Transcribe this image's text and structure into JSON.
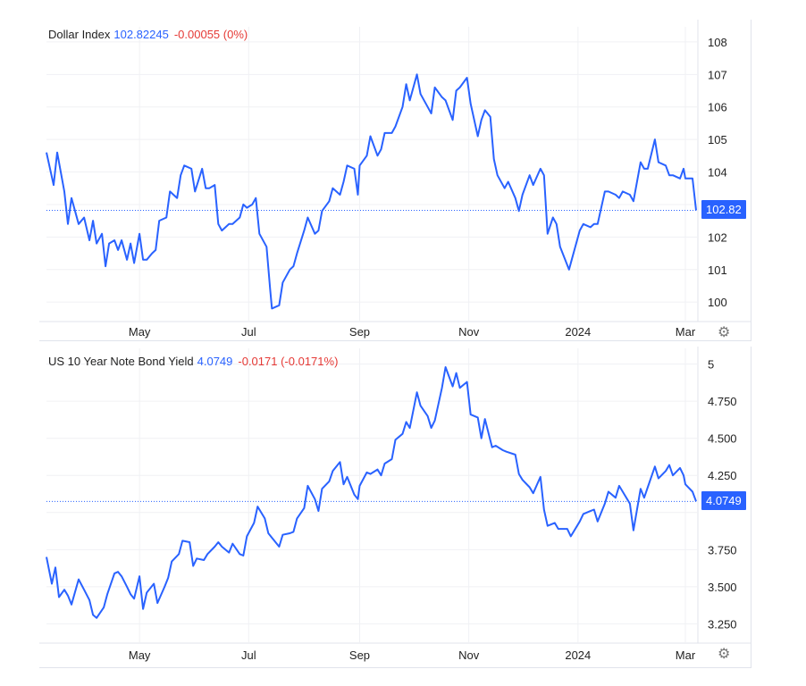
{
  "chart_data": [
    {
      "type": "line",
      "legend": {
        "name": "Dollar Index",
        "value": "102.82245",
        "change": "-0.00055 (0%)"
      },
      "last_label": "102.82",
      "last_value": 102.82,
      "ylim": [
        99.4,
        108.3
      ],
      "yticks": [
        100,
        101,
        102,
        103,
        104,
        105,
        106,
        107,
        108
      ],
      "ytick_labels": [
        "100",
        "101",
        "102",
        "",
        "104",
        "105",
        "106",
        "107",
        "108"
      ],
      "xticks": [
        "May",
        "Jul",
        "Sep",
        "Nov",
        "2024",
        "Mar"
      ],
      "xtick_positions": [
        "2023-05-01",
        "2023-07-01",
        "2023-09-01",
        "2023-11-01",
        "2024-01-01",
        "2024-03-01"
      ],
      "xlim": [
        "2023-03-10",
        "2024-03-08"
      ],
      "grid": true,
      "color": "#2962ff",
      "points": [
        [
          "2023-03-10",
          104.6
        ],
        [
          "2023-03-14",
          103.6
        ],
        [
          "2023-03-16",
          104.6
        ],
        [
          "2023-03-20",
          103.4
        ],
        [
          "2023-03-22",
          102.4
        ],
        [
          "2023-03-24",
          103.2
        ],
        [
          "2023-03-28",
          102.4
        ],
        [
          "2023-03-31",
          102.6
        ],
        [
          "2023-04-03",
          101.9
        ],
        [
          "2023-04-05",
          102.5
        ],
        [
          "2023-04-07",
          101.8
        ],
        [
          "2023-04-10",
          102.1
        ],
        [
          "2023-04-12",
          101.1
        ],
        [
          "2023-04-14",
          101.8
        ],
        [
          "2023-04-17",
          101.9
        ],
        [
          "2023-04-19",
          101.6
        ],
        [
          "2023-04-21",
          101.9
        ],
        [
          "2023-04-24",
          101.3
        ],
        [
          "2023-04-26",
          101.8
        ],
        [
          "2023-04-28",
          101.2
        ],
        [
          "2023-05-01",
          102.1
        ],
        [
          "2023-05-03",
          101.3
        ],
        [
          "2023-05-05",
          101.3
        ],
        [
          "2023-05-08",
          101.5
        ],
        [
          "2023-05-10",
          101.6
        ],
        [
          "2023-05-12",
          102.5
        ],
        [
          "2023-05-16",
          102.6
        ],
        [
          "2023-05-18",
          103.4
        ],
        [
          "2023-05-22",
          103.2
        ],
        [
          "2023-05-24",
          103.9
        ],
        [
          "2023-05-26",
          104.2
        ],
        [
          "2023-05-30",
          104.1
        ],
        [
          "2023-06-01",
          103.4
        ],
        [
          "2023-06-05",
          104.1
        ],
        [
          "2023-06-07",
          103.5
        ],
        [
          "2023-06-09",
          103.5
        ],
        [
          "2023-06-12",
          103.6
        ],
        [
          "2023-06-14",
          102.4
        ],
        [
          "2023-06-16",
          102.2
        ],
        [
          "2023-06-20",
          102.4
        ],
        [
          "2023-06-22",
          102.4
        ],
        [
          "2023-06-26",
          102.6
        ],
        [
          "2023-06-28",
          103.0
        ],
        [
          "2023-06-30",
          102.9
        ],
        [
          "2023-07-03",
          103.0
        ],
        [
          "2023-07-05",
          103.2
        ],
        [
          "2023-07-07",
          102.1
        ],
        [
          "2023-07-11",
          101.7
        ],
        [
          "2023-07-13",
          100.4
        ],
        [
          "2023-07-14",
          99.8
        ],
        [
          "2023-07-18",
          99.9
        ],
        [
          "2023-07-20",
          100.6
        ],
        [
          "2023-07-24",
          101.0
        ],
        [
          "2023-07-26",
          101.1
        ],
        [
          "2023-07-28",
          101.5
        ],
        [
          "2023-08-01",
          102.2
        ],
        [
          "2023-08-03",
          102.6
        ],
        [
          "2023-08-07",
          102.1
        ],
        [
          "2023-08-09",
          102.2
        ],
        [
          "2023-08-11",
          102.8
        ],
        [
          "2023-08-15",
          103.1
        ],
        [
          "2023-08-17",
          103.5
        ],
        [
          "2023-08-21",
          103.3
        ],
        [
          "2023-08-23",
          103.7
        ],
        [
          "2023-08-25",
          104.2
        ],
        [
          "2023-08-29",
          104.1
        ],
        [
          "2023-08-31",
          103.3
        ],
        [
          "2023-09-01",
          104.2
        ],
        [
          "2023-09-05",
          104.5
        ],
        [
          "2023-09-07",
          105.1
        ],
        [
          "2023-09-11",
          104.5
        ],
        [
          "2023-09-13",
          104.7
        ],
        [
          "2023-09-15",
          105.2
        ],
        [
          "2023-09-19",
          105.2
        ],
        [
          "2023-09-21",
          105.4
        ],
        [
          "2023-09-25",
          106.0
        ],
        [
          "2023-09-27",
          106.7
        ],
        [
          "2023-09-29",
          106.2
        ],
        [
          "2023-10-03",
          107.0
        ],
        [
          "2023-10-05",
          106.4
        ],
        [
          "2023-10-09",
          106.0
        ],
        [
          "2023-10-11",
          105.8
        ],
        [
          "2023-10-13",
          106.6
        ],
        [
          "2023-10-17",
          106.3
        ],
        [
          "2023-10-19",
          106.2
        ],
        [
          "2023-10-23",
          105.6
        ],
        [
          "2023-10-25",
          106.5
        ],
        [
          "2023-10-27",
          106.6
        ],
        [
          "2023-10-31",
          106.9
        ],
        [
          "2023-11-02",
          106.1
        ],
        [
          "2023-11-06",
          105.1
        ],
        [
          "2023-11-08",
          105.6
        ],
        [
          "2023-11-10",
          105.9
        ],
        [
          "2023-11-13",
          105.7
        ],
        [
          "2023-11-15",
          104.4
        ],
        [
          "2023-11-17",
          103.9
        ],
        [
          "2023-11-21",
          103.5
        ],
        [
          "2023-11-23",
          103.7
        ],
        [
          "2023-11-27",
          103.2
        ],
        [
          "2023-11-29",
          102.8
        ],
        [
          "2023-12-01",
          103.3
        ],
        [
          "2023-12-05",
          103.9
        ],
        [
          "2023-12-07",
          103.6
        ],
        [
          "2023-12-11",
          104.1
        ],
        [
          "2023-12-13",
          103.9
        ],
        [
          "2023-12-15",
          102.1
        ],
        [
          "2023-12-18",
          102.6
        ],
        [
          "2023-12-20",
          102.4
        ],
        [
          "2023-12-22",
          101.7
        ],
        [
          "2023-12-27",
          101.0
        ],
        [
          "2023-12-29",
          101.4
        ],
        [
          "2024-01-02",
          102.2
        ],
        [
          "2024-01-04",
          102.4
        ],
        [
          "2024-01-08",
          102.3
        ],
        [
          "2024-01-10",
          102.4
        ],
        [
          "2024-01-12",
          102.4
        ],
        [
          "2024-01-16",
          103.4
        ],
        [
          "2024-01-18",
          103.4
        ],
        [
          "2024-01-22",
          103.3
        ],
        [
          "2024-01-24",
          103.2
        ],
        [
          "2024-01-26",
          103.4
        ],
        [
          "2024-01-30",
          103.3
        ],
        [
          "2024-02-01",
          103.1
        ],
        [
          "2024-02-05",
          104.3
        ],
        [
          "2024-02-07",
          104.1
        ],
        [
          "2024-02-09",
          104.1
        ],
        [
          "2024-02-13",
          105.0
        ],
        [
          "2024-02-15",
          104.3
        ],
        [
          "2024-02-19",
          104.2
        ],
        [
          "2024-02-21",
          103.9
        ],
        [
          "2024-02-23",
          103.9
        ],
        [
          "2024-02-27",
          103.8
        ],
        [
          "2024-02-29",
          104.1
        ],
        [
          "2024-03-01",
          103.8
        ],
        [
          "2024-03-05",
          103.8
        ],
        [
          "2024-03-07",
          102.82
        ]
      ]
    },
    {
      "type": "line",
      "legend": {
        "name": "US 10 Year Note Bond Yield",
        "value": "4.0749",
        "change": "-0.0171 (-0.0171%)"
      },
      "last_label": "4.0749",
      "last_value": 4.0749,
      "ylim": [
        3.12,
        5.07
      ],
      "yticks": [
        3.25,
        3.5,
        3.75,
        4.0,
        4.25,
        4.5,
        4.75,
        5.0
      ],
      "ytick_labels": [
        "3.250",
        "3.500",
        "3.750",
        "",
        "4.250",
        "4.500",
        "4.750",
        "5"
      ],
      "xticks": [
        "May",
        "Jul",
        "Sep",
        "Nov",
        "2024",
        "Mar"
      ],
      "xtick_positions": [
        "2023-05-01",
        "2023-07-01",
        "2023-09-01",
        "2023-11-01",
        "2024-01-01",
        "2024-03-01"
      ],
      "xlim": [
        "2023-03-10",
        "2024-03-08"
      ],
      "grid": true,
      "color": "#2962ff",
      "points": [
        [
          "2023-03-10",
          3.7
        ],
        [
          "2023-03-13",
          3.52
        ],
        [
          "2023-03-15",
          3.63
        ],
        [
          "2023-03-17",
          3.43
        ],
        [
          "2023-03-20",
          3.48
        ],
        [
          "2023-03-22",
          3.44
        ],
        [
          "2023-03-24",
          3.38
        ],
        [
          "2023-03-28",
          3.55
        ],
        [
          "2023-03-31",
          3.48
        ],
        [
          "2023-04-03",
          3.41
        ],
        [
          "2023-04-05",
          3.31
        ],
        [
          "2023-04-07",
          3.29
        ],
        [
          "2023-04-11",
          3.36
        ],
        [
          "2023-04-13",
          3.45
        ],
        [
          "2023-04-17",
          3.59
        ],
        [
          "2023-04-19",
          3.6
        ],
        [
          "2023-04-21",
          3.57
        ],
        [
          "2023-04-24",
          3.5
        ],
        [
          "2023-04-26",
          3.45
        ],
        [
          "2023-04-28",
          3.42
        ],
        [
          "2023-05-01",
          3.57
        ],
        [
          "2023-05-03",
          3.35
        ],
        [
          "2023-05-05",
          3.46
        ],
        [
          "2023-05-09",
          3.52
        ],
        [
          "2023-05-11",
          3.39
        ],
        [
          "2023-05-15",
          3.5
        ],
        [
          "2023-05-17",
          3.56
        ],
        [
          "2023-05-19",
          3.67
        ],
        [
          "2023-05-23",
          3.72
        ],
        [
          "2023-05-25",
          3.81
        ],
        [
          "2023-05-29",
          3.8
        ],
        [
          "2023-05-31",
          3.64
        ],
        [
          "2023-06-02",
          3.69
        ],
        [
          "2023-06-06",
          3.68
        ],
        [
          "2023-06-08",
          3.72
        ],
        [
          "2023-06-12",
          3.77
        ],
        [
          "2023-06-14",
          3.8
        ],
        [
          "2023-06-16",
          3.77
        ],
        [
          "2023-06-20",
          3.73
        ],
        [
          "2023-06-22",
          3.79
        ],
        [
          "2023-06-26",
          3.72
        ],
        [
          "2023-06-28",
          3.71
        ],
        [
          "2023-06-30",
          3.84
        ],
        [
          "2023-07-04",
          3.93
        ],
        [
          "2023-07-06",
          4.04
        ],
        [
          "2023-07-10",
          3.96
        ],
        [
          "2023-07-12",
          3.86
        ],
        [
          "2023-07-14",
          3.83
        ],
        [
          "2023-07-18",
          3.77
        ],
        [
          "2023-07-20",
          3.85
        ],
        [
          "2023-07-24",
          3.86
        ],
        [
          "2023-07-26",
          3.87
        ],
        [
          "2023-07-28",
          3.96
        ],
        [
          "2023-08-01",
          4.03
        ],
        [
          "2023-08-03",
          4.18
        ],
        [
          "2023-08-07",
          4.09
        ],
        [
          "2023-08-09",
          4.01
        ],
        [
          "2023-08-11",
          4.16
        ],
        [
          "2023-08-15",
          4.21
        ],
        [
          "2023-08-17",
          4.28
        ],
        [
          "2023-08-21",
          4.34
        ],
        [
          "2023-08-23",
          4.19
        ],
        [
          "2023-08-25",
          4.24
        ],
        [
          "2023-08-29",
          4.12
        ],
        [
          "2023-08-31",
          4.09
        ],
        [
          "2023-09-01",
          4.18
        ],
        [
          "2023-09-05",
          4.27
        ],
        [
          "2023-09-07",
          4.26
        ],
        [
          "2023-09-11",
          4.29
        ],
        [
          "2023-09-13",
          4.25
        ],
        [
          "2023-09-15",
          4.33
        ],
        [
          "2023-09-19",
          4.36
        ],
        [
          "2023-09-21",
          4.49
        ],
        [
          "2023-09-25",
          4.53
        ],
        [
          "2023-09-27",
          4.61
        ],
        [
          "2023-09-29",
          4.57
        ],
        [
          "2023-10-03",
          4.81
        ],
        [
          "2023-10-05",
          4.72
        ],
        [
          "2023-10-09",
          4.65
        ],
        [
          "2023-10-11",
          4.57
        ],
        [
          "2023-10-13",
          4.62
        ],
        [
          "2023-10-17",
          4.84
        ],
        [
          "2023-10-19",
          4.98
        ],
        [
          "2023-10-23",
          4.85
        ],
        [
          "2023-10-25",
          4.94
        ],
        [
          "2023-10-27",
          4.84
        ],
        [
          "2023-10-31",
          4.88
        ],
        [
          "2023-11-02",
          4.66
        ],
        [
          "2023-11-06",
          4.64
        ],
        [
          "2023-11-08",
          4.5
        ],
        [
          "2023-11-10",
          4.63
        ],
        [
          "2023-11-14",
          4.44
        ],
        [
          "2023-11-16",
          4.45
        ],
        [
          "2023-11-20",
          4.42
        ],
        [
          "2023-11-22",
          4.41
        ],
        [
          "2023-11-27",
          4.39
        ],
        [
          "2023-11-29",
          4.26
        ],
        [
          "2023-12-01",
          4.22
        ],
        [
          "2023-12-05",
          4.17
        ],
        [
          "2023-12-07",
          4.13
        ],
        [
          "2023-12-11",
          4.24
        ],
        [
          "2023-12-13",
          4.02
        ],
        [
          "2023-12-15",
          3.91
        ],
        [
          "2023-12-19",
          3.93
        ],
        [
          "2023-12-21",
          3.89
        ],
        [
          "2023-12-26",
          3.89
        ],
        [
          "2023-12-28",
          3.84
        ],
        [
          "2024-01-02",
          3.94
        ],
        [
          "2024-01-04",
          3.99
        ],
        [
          "2024-01-08",
          4.01
        ],
        [
          "2024-01-10",
          4.02
        ],
        [
          "2024-01-12",
          3.94
        ],
        [
          "2024-01-16",
          4.06
        ],
        [
          "2024-01-18",
          4.14
        ],
        [
          "2024-01-22",
          4.1
        ],
        [
          "2024-01-24",
          4.18
        ],
        [
          "2024-01-26",
          4.14
        ],
        [
          "2024-01-30",
          4.06
        ],
        [
          "2024-02-01",
          3.88
        ],
        [
          "2024-02-05",
          4.16
        ],
        [
          "2024-02-07",
          4.1
        ],
        [
          "2024-02-09",
          4.17
        ],
        [
          "2024-02-13",
          4.31
        ],
        [
          "2024-02-15",
          4.23
        ],
        [
          "2024-02-19",
          4.28
        ],
        [
          "2024-02-21",
          4.32
        ],
        [
          "2024-02-23",
          4.25
        ],
        [
          "2024-02-27",
          4.3
        ],
        [
          "2024-02-29",
          4.25
        ],
        [
          "2024-03-01",
          4.19
        ],
        [
          "2024-03-05",
          4.14
        ],
        [
          "2024-03-07",
          4.0749
        ]
      ]
    }
  ]
}
